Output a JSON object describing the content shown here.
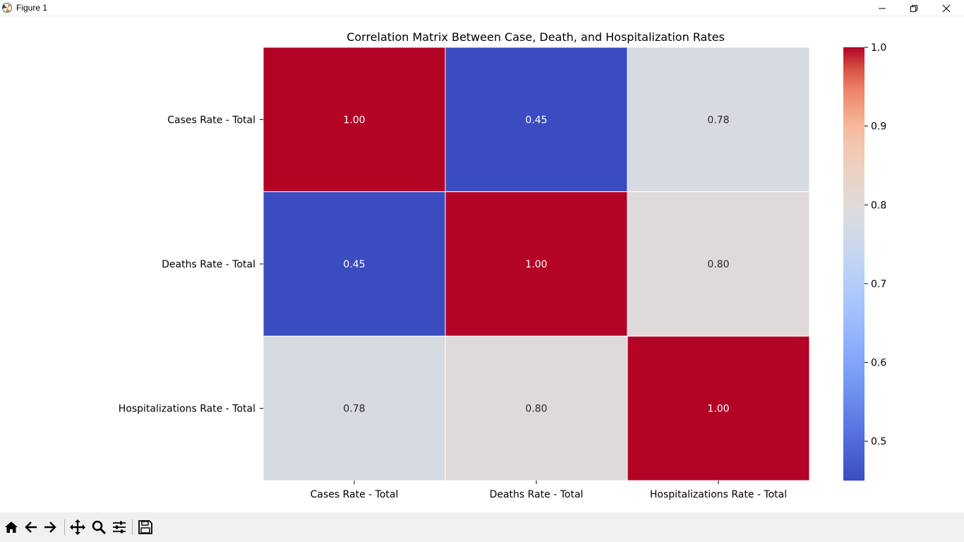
{
  "window": {
    "title": "Figure 1",
    "icons": {
      "app": "matplotlib-app-icon",
      "minimize": "minimize-icon",
      "maximize": "restore-icon",
      "close": "close-icon"
    }
  },
  "toolbar": {
    "buttons": [
      {
        "name": "home-icon"
      },
      {
        "name": "back-arrow-icon"
      },
      {
        "name": "forward-arrow-icon"
      },
      {
        "name": "pan-move-icon"
      },
      {
        "name": "zoom-magnifier-icon"
      },
      {
        "name": "configure-subplots-icon"
      },
      {
        "name": "save-floppy-icon"
      }
    ]
  },
  "chart_data": {
    "type": "heatmap",
    "title": "Correlation Matrix Between Case, Death, and Hospitalization Rates",
    "rows": [
      "Cases Rate - Total",
      "Deaths Rate - Total",
      "Hospitalizations Rate - Total"
    ],
    "columns": [
      "Cases Rate - Total",
      "Deaths Rate - Total",
      "Hospitalizations Rate - Total"
    ],
    "values": [
      [
        1.0,
        0.45,
        0.78
      ],
      [
        0.45,
        1.0,
        0.8
      ],
      [
        0.78,
        0.8,
        1.0
      ]
    ],
    "annotation_format": "2f",
    "colormap": "coolwarm",
    "colors": {
      "low": "#3b4cc0",
      "mid": "#dddcdc",
      "high": "#b40426"
    },
    "colorbar": {
      "range": [
        0.45,
        1.0
      ],
      "ticks": [
        0.5,
        0.6,
        0.7,
        0.8,
        0.9,
        1.0
      ],
      "tick_labels": [
        "0.5",
        "0.6",
        "0.7",
        "0.8",
        "0.9",
        "1.0"
      ]
    }
  }
}
